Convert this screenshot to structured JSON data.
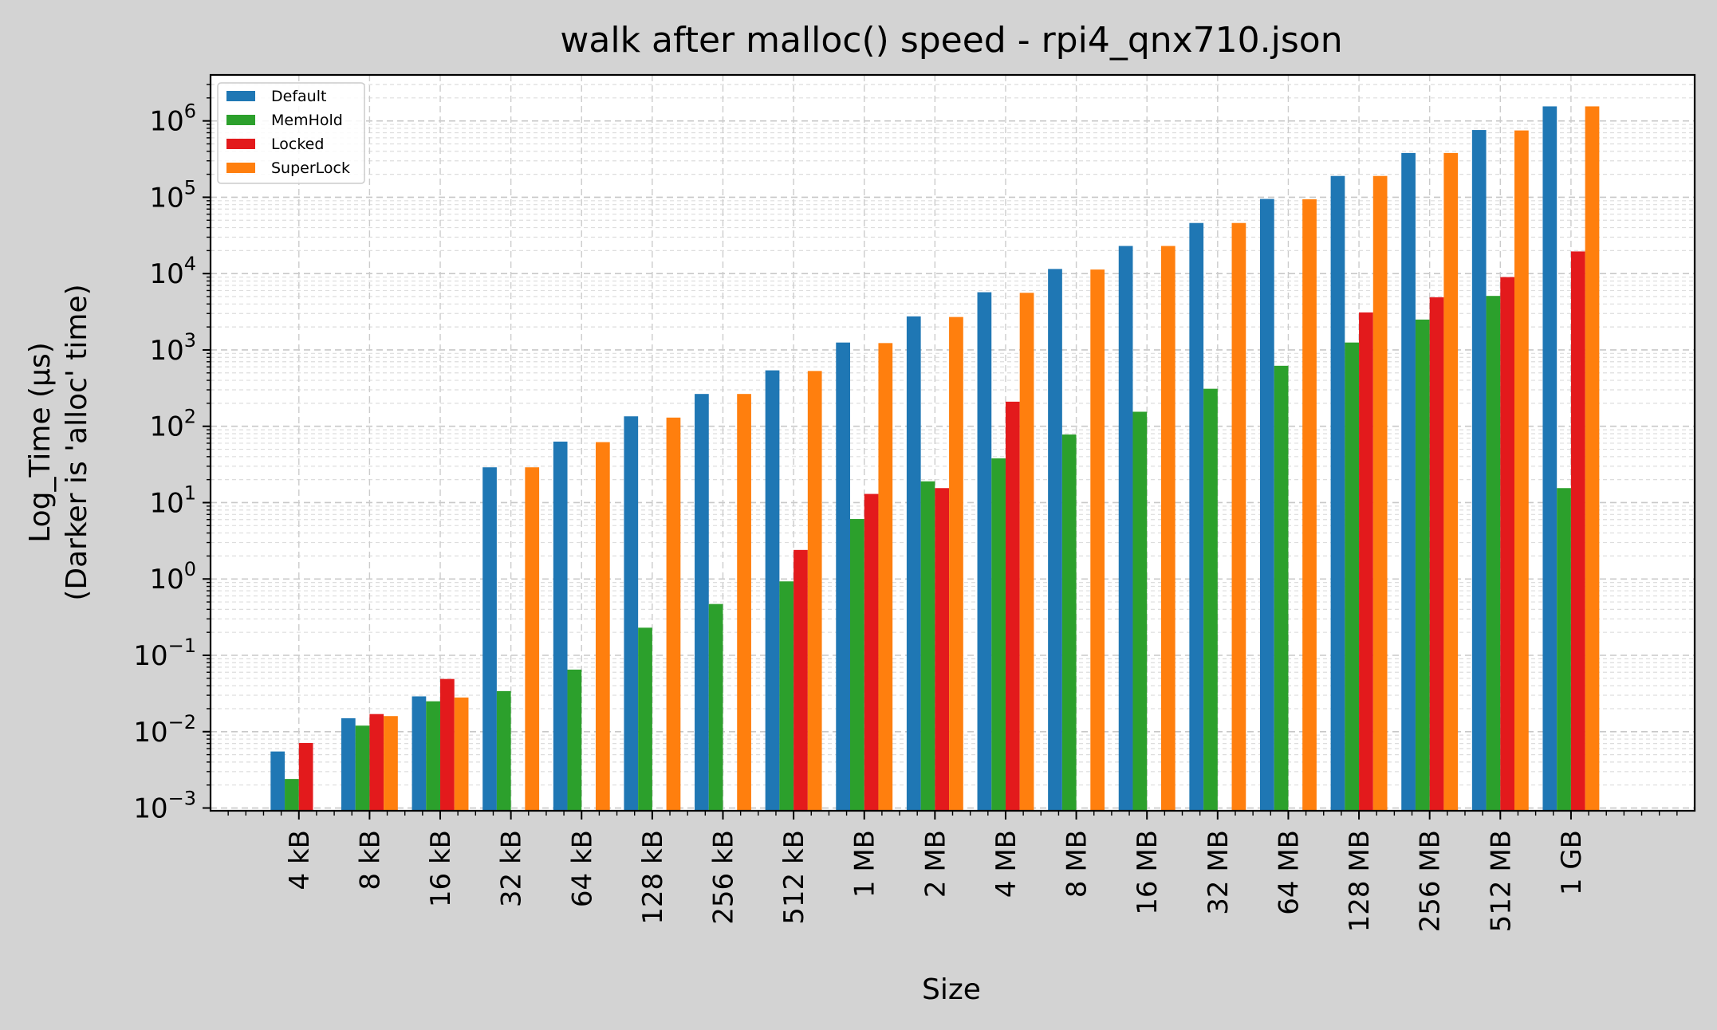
{
  "chart_data": {
    "type": "bar",
    "title": "walk after malloc() speed - rpi4_qnx710.json",
    "xlabel": "Size",
    "ylabel_line1": "Log_Time (µs)",
    "ylabel_line2": "(Darker is 'alloc' time)",
    "yscale": "log",
    "ylim": [
      0.00092,
      4000000
    ],
    "yticks": [
      0.001,
      0.01,
      0.1,
      1,
      10,
      100,
      1000,
      10000,
      100000,
      1000000
    ],
    "grid": true,
    "legend_position": "top-left",
    "categories": [
      "4 kB",
      "8 kB",
      "16 kB",
      "32 kB",
      "64 kB",
      "128 kB",
      "256 kB",
      "512 kB",
      "1 MB",
      "2 MB",
      "4 MB",
      "8 MB",
      "16 MB",
      "32 MB",
      "64 MB",
      "128 MB",
      "256 MB",
      "512 MB",
      "1 GB"
    ],
    "series": [
      {
        "name": "Default",
        "color": "#1f77b4",
        "values": [
          0.0055,
          0.015,
          0.029,
          29,
          63,
          135,
          265,
          540,
          1250,
          2750,
          5700,
          11500,
          23000,
          46000,
          95000,
          190000,
          380000,
          760000,
          1550000
        ]
      },
      {
        "name": "MemHold",
        "color": "#2ca02c",
        "values": [
          0.0024,
          0.012,
          0.025,
          0.034,
          0.065,
          0.23,
          0.47,
          0.93,
          6.1,
          19,
          38,
          78,
          155,
          310,
          620,
          1250,
          2500,
          5100,
          15.5
        ]
      },
      {
        "name": "Locked",
        "color": "#e31a1c",
        "values": [
          0.0071,
          0.017,
          0.049,
          null,
          null,
          null,
          null,
          2.4,
          13,
          15.5,
          210,
          null,
          null,
          null,
          null,
          3100,
          4900,
          9000,
          19500
        ]
      },
      {
        "name": "SuperLock",
        "color": "#ff7f0e",
        "values": [
          null,
          0.016,
          0.028,
          29,
          62,
          130,
          265,
          530,
          1230,
          2700,
          5600,
          11300,
          23000,
          46000,
          94000,
          190000,
          380000,
          750000,
          1550000
        ]
      }
    ]
  }
}
